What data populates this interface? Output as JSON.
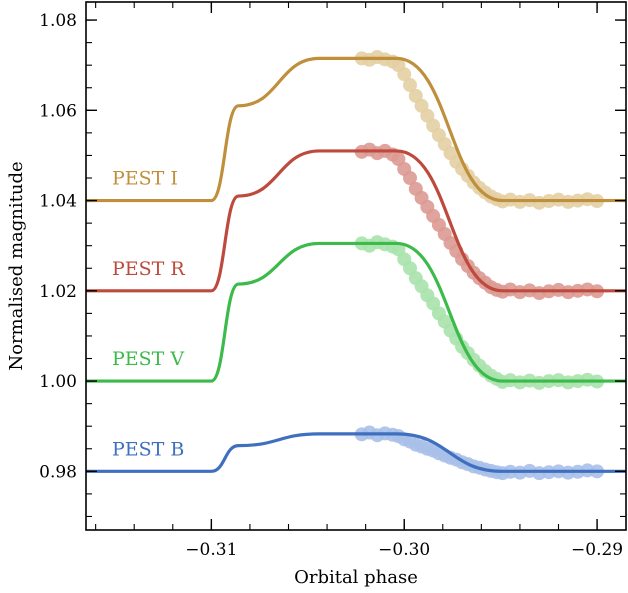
{
  "chart_data": {
    "type": "line",
    "title": "",
    "xlabel": "Orbital phase",
    "ylabel": "Normalised magnitude",
    "xlim": [
      -0.3165,
      -0.2885
    ],
    "ylim": [
      1.084,
      0.967
    ],
    "y_inverted": true,
    "x_ticks": [
      {
        "value": -0.31,
        "label": "−0.31"
      },
      {
        "value": -0.3,
        "label": "−0.30"
      },
      {
        "value": -0.29,
        "label": "−0.29"
      }
    ],
    "y_ticks": [
      {
        "value": 0.98,
        "label": "0.98"
      },
      {
        "value": 1.0,
        "label": "1.00"
      },
      {
        "value": 1.02,
        "label": "1.02"
      },
      {
        "value": 1.04,
        "label": "1.04"
      },
      {
        "value": 1.06,
        "label": "1.06"
      },
      {
        "value": 1.08,
        "label": "1.08"
      }
    ],
    "x_minor_step": 0.002,
    "y_minor_step": 0.005,
    "grid": false,
    "series": [
      {
        "name": "PEST B",
        "color": "#3f6fbf",
        "point_color": "#a8c0e8",
        "model": {
          "x": [
            -0.3165,
            -0.31,
            -0.3086,
            -0.3044,
            -0.3016,
            -0.3004,
            -0.2949,
            -0.2885
          ],
          "y": [
            0.98,
            0.98,
            0.9857,
            0.9883,
            0.9883,
            0.9883,
            0.98,
            0.98
          ]
        },
        "points": {
          "x": [
            -0.3022,
            -0.3018,
            -0.3014,
            -0.301,
            -0.3006,
            -0.3003,
            -0.3,
            -0.2997,
            -0.2994,
            -0.2991,
            -0.2988,
            -0.2985,
            -0.2982,
            -0.2979,
            -0.2976,
            -0.2973,
            -0.297,
            -0.2967,
            -0.2964,
            -0.2961,
            -0.2958,
            -0.2955,
            -0.2952,
            -0.2949,
            -0.2945,
            -0.294,
            -0.2935,
            -0.293,
            -0.2925,
            -0.292,
            -0.2915,
            -0.291,
            -0.2905,
            -0.29
          ],
          "y": [
            0.9882,
            0.9886,
            0.988,
            0.9884,
            0.9881,
            0.9878,
            0.9871,
            0.9866,
            0.9859,
            0.9855,
            0.985,
            0.9846,
            0.984,
            0.9835,
            0.983,
            0.9826,
            0.982,
            0.9816,
            0.9811,
            0.9808,
            0.9804,
            0.9801,
            0.9798,
            0.9796,
            0.9799,
            0.9797,
            0.9801,
            0.9796,
            0.9798,
            0.98,
            0.9797,
            0.9799,
            0.9802,
            0.98
          ]
        }
      },
      {
        "name": "PEST V",
        "color": "#3cba4a",
        "point_color": "#a9e2ac",
        "model": {
          "x": [
            -0.3165,
            -0.31,
            -0.3086,
            -0.3044,
            -0.3016,
            -0.3004,
            -0.2949,
            -0.2885
          ],
          "y": [
            1.0,
            1.0,
            1.0215,
            1.0305,
            1.0305,
            1.0305,
            1.0,
            1.0
          ]
        },
        "points": {
          "x": [
            -0.3022,
            -0.3018,
            -0.3014,
            -0.301,
            -0.3006,
            -0.3003,
            -0.3,
            -0.2997,
            -0.2994,
            -0.2991,
            -0.2988,
            -0.2985,
            -0.2982,
            -0.2979,
            -0.2976,
            -0.2973,
            -0.297,
            -0.2967,
            -0.2964,
            -0.2961,
            -0.2958,
            -0.2955,
            -0.2952,
            -0.2949,
            -0.2945,
            -0.294,
            -0.2935,
            -0.293,
            -0.2925,
            -0.292,
            -0.2915,
            -0.291,
            -0.2905,
            -0.29
          ],
          "y": [
            1.0305,
            1.03,
            1.0308,
            1.0303,
            1.0298,
            1.0292,
            1.027,
            1.025,
            1.0228,
            1.021,
            1.019,
            1.0172,
            1.015,
            1.0132,
            1.0112,
            1.0094,
            1.0076,
            1.0062,
            1.0047,
            1.0034,
            1.0022,
            1.0012,
            1.0005,
            0.9998,
            1.0002,
            0.9997,
            1.0001,
            0.9996,
            1.0,
            1.0002,
            0.9997,
            1.0,
            1.0003,
            0.9999
          ]
        }
      },
      {
        "name": "PEST R",
        "color": "#bd4a3c",
        "point_color": "#dc9a92",
        "model": {
          "x": [
            -0.3165,
            -0.31,
            -0.3086,
            -0.3044,
            -0.3016,
            -0.3004,
            -0.2949,
            -0.2885
          ],
          "y": [
            1.02,
            1.02,
            1.041,
            1.051,
            1.051,
            1.051,
            1.02,
            1.02
          ]
        },
        "points": {
          "x": [
            -0.3022,
            -0.3018,
            -0.3014,
            -0.301,
            -0.3006,
            -0.3003,
            -0.3,
            -0.2997,
            -0.2994,
            -0.2991,
            -0.2988,
            -0.2985,
            -0.2982,
            -0.2979,
            -0.2976,
            -0.2973,
            -0.297,
            -0.2967,
            -0.2964,
            -0.2961,
            -0.2958,
            -0.2955,
            -0.2952,
            -0.2949,
            -0.2945,
            -0.294,
            -0.2935,
            -0.293,
            -0.2925,
            -0.292,
            -0.2915,
            -0.291,
            -0.2905,
            -0.29
          ],
          "y": [
            1.0508,
            1.0513,
            1.0505,
            1.051,
            1.0502,
            1.0492,
            1.047,
            1.045,
            1.0426,
            1.0406,
            1.0386,
            1.0366,
            1.0346,
            1.0326,
            1.0306,
            1.0288,
            1.027,
            1.0255,
            1.024,
            1.0228,
            1.0218,
            1.0208,
            1.0202,
            1.0198,
            1.0203,
            1.0197,
            1.0201,
            1.0195,
            1.0199,
            1.0202,
            1.0197,
            1.02,
            1.0203,
            1.0199
          ]
        }
      },
      {
        "name": "PEST I",
        "color": "#bf8f3c",
        "point_color": "#e3cfa3",
        "model": {
          "x": [
            -0.3165,
            -0.31,
            -0.3086,
            -0.3044,
            -0.3016,
            -0.3004,
            -0.2949,
            -0.2885
          ],
          "y": [
            1.04,
            1.04,
            1.061,
            1.0715,
            1.0715,
            1.0715,
            1.04,
            1.04
          ]
        },
        "points": {
          "x": [
            -0.3022,
            -0.3018,
            -0.3014,
            -0.301,
            -0.3006,
            -0.3003,
            -0.3,
            -0.2997,
            -0.2994,
            -0.2991,
            -0.2988,
            -0.2985,
            -0.2982,
            -0.2979,
            -0.2976,
            -0.2973,
            -0.297,
            -0.2967,
            -0.2964,
            -0.2961,
            -0.2958,
            -0.2955,
            -0.2952,
            -0.2949,
            -0.2945,
            -0.294,
            -0.2935,
            -0.293,
            -0.2925,
            -0.292,
            -0.2915,
            -0.291,
            -0.2905,
            -0.29
          ],
          "y": [
            1.0715,
            1.0712,
            1.0718,
            1.0713,
            1.0708,
            1.07,
            1.068,
            1.0656,
            1.0632,
            1.061,
            1.0588,
            1.0566,
            1.0545,
            1.0525,
            1.0505,
            1.0486,
            1.047,
            1.0455,
            1.044,
            1.0428,
            1.0418,
            1.0409,
            1.0403,
            1.0398,
            1.0402,
            1.0397,
            1.0401,
            1.0395,
            1.0399,
            1.0402,
            1.0397,
            1.04,
            1.0403,
            1.0399
          ]
        }
      }
    ]
  }
}
